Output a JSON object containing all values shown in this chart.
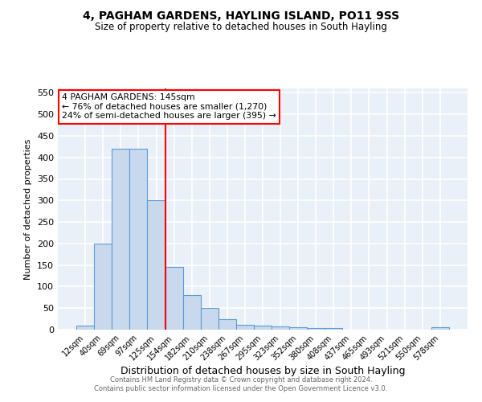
{
  "title1": "4, PAGHAM GARDENS, HAYLING ISLAND, PO11 9SS",
  "title2": "Size of property relative to detached houses in South Hayling",
  "xlabel": "Distribution of detached houses by size in South Hayling",
  "ylabel": "Number of detached properties",
  "bin_labels": [
    "12sqm",
    "40sqm",
    "69sqm",
    "97sqm",
    "125sqm",
    "154sqm",
    "182sqm",
    "210sqm",
    "238sqm",
    "267sqm",
    "295sqm",
    "323sqm",
    "352sqm",
    "380sqm",
    "408sqm",
    "437sqm",
    "465sqm",
    "493sqm",
    "521sqm",
    "550sqm",
    "578sqm"
  ],
  "bar_heights": [
    10,
    200,
    420,
    420,
    300,
    145,
    80,
    50,
    25,
    12,
    10,
    8,
    5,
    4,
    4,
    0,
    0,
    0,
    0,
    0,
    5
  ],
  "bar_color": "#c9d9ed",
  "bar_edge_color": "#5b9bd5",
  "bar_width": 1.0,
  "vline_x": 4.5,
  "vline_color": "red",
  "annotation_title": "4 PAGHAM GARDENS: 145sqm",
  "annotation_line1": "← 76% of detached houses are smaller (1,270)",
  "annotation_line2": "24% of semi-detached houses are larger (395) →",
  "annotation_box_color": "white",
  "annotation_box_edge_color": "red",
  "ylim": [
    0,
    560
  ],
  "yticks": [
    0,
    50,
    100,
    150,
    200,
    250,
    300,
    350,
    400,
    450,
    500,
    550
  ],
  "background_color": "#eaf0f8",
  "grid_color": "white",
  "footer": "Contains HM Land Registry data © Crown copyright and database right 2024.\nContains public sector information licensed under the Open Government Licence v3.0."
}
